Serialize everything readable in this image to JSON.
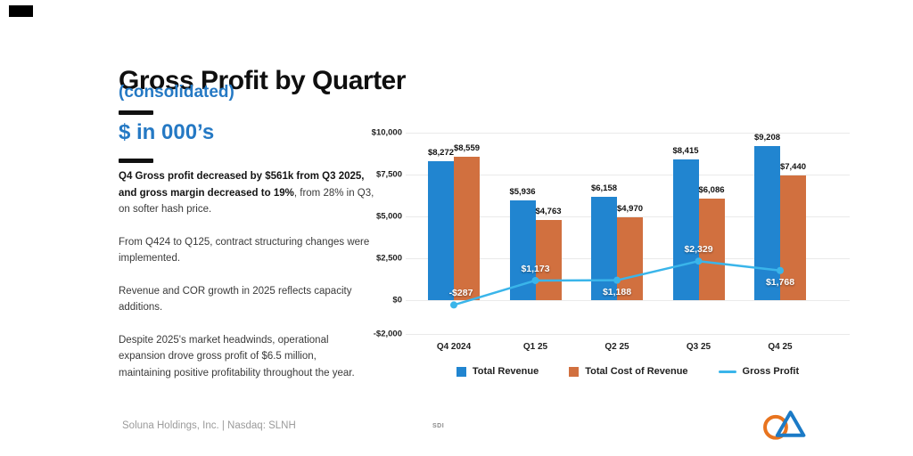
{
  "slide": {
    "title": "Gross Profit by Quarter",
    "subtitle": "(consolidated)",
    "units_label": "$ in 000’s",
    "paragraphs": [
      {
        "segments": [
          {
            "text": "Q4 Gross profit decreased by $561k from Q3 2025,\nand gross margin decreased to 19%",
            "bold": true
          },
          {
            "text": ", from 28% in Q3,\non softer hash price.",
            "bold": false
          }
        ]
      },
      {
        "segments": [
          {
            "text": "From Q424 to Q125, contract structuring changes were\nimplemented.",
            "bold": false
          }
        ]
      },
      {
        "segments": [
          {
            "text": "Revenue and COR growth in 2025 reflects capacity\nadditions.",
            "bold": false
          }
        ]
      },
      {
        "segments": [
          {
            "text": "Despite 2025's market headwinds, operational\nexpansion drove gross profit of $6.5 million,\nmaintaining positive profitability throughout the year.",
            "bold": false
          }
        ]
      }
    ]
  },
  "footer": {
    "left": "Soluna Holdings, Inc. | Nasdaq: SLNH",
    "center": "SDI",
    "logo": "soluna-logo"
  },
  "colors": {
    "accent_blue": "#2579c4",
    "bar_revenue": "#2185d0",
    "bar_cost": "#d1703f",
    "line_gross_profit": "#3ab5ea",
    "logo_orange": "#e8741f",
    "logo_blue": "#1b7ac6",
    "gridline": "#eaeaea",
    "footer_gray": "#9b9b9b"
  },
  "chart_data": {
    "type": "bar",
    "subtype": "grouped bars with line overlay",
    "categories": [
      "Q4 2024",
      "Q1 25",
      "Q2 25",
      "Q3 25",
      "Q4 25"
    ],
    "series": [
      {
        "name": "Total Revenue",
        "type": "bar",
        "color": "#2185d0",
        "values": [
          8272,
          5936,
          6158,
          8415,
          9208
        ],
        "labels": [
          "$8,272",
          "$5,936",
          "$6,158",
          "$8,415",
          "$9,208"
        ]
      },
      {
        "name": "Total Cost of Revenue",
        "type": "bar",
        "color": "#d1703f",
        "values": [
          8559,
          4763,
          4970,
          6086,
          7440
        ],
        "labels": [
          "$8,559",
          "$4,763",
          "$4,970",
          "$6,086",
          "$7,440"
        ]
      },
      {
        "name": "Gross Profit",
        "type": "line",
        "color": "#3ab5ea",
        "values": [
          -287,
          1173,
          1188,
          2329,
          1768
        ],
        "labels": [
          "-$287",
          "$1,173",
          "$1,188",
          "$2,329",
          "$1,768"
        ],
        "label_positions": [
          "above",
          "above",
          "below",
          "above",
          "below"
        ]
      }
    ],
    "y_ticks": [
      {
        "label": "$10,000",
        "value": 10000
      },
      {
        "label": "$7,500",
        "value": 7500
      },
      {
        "label": "$5,000",
        "value": 5000
      },
      {
        "label": "$2,500",
        "value": 2500
      },
      {
        "label": "$0",
        "value": 0
      },
      {
        "label": "-$2,000",
        "value": -2000
      }
    ],
    "ylim": [
      -2000,
      10000
    ],
    "grid": true,
    "legend_position": "bottom",
    "title": "",
    "xlabel": "",
    "ylabel": ""
  }
}
